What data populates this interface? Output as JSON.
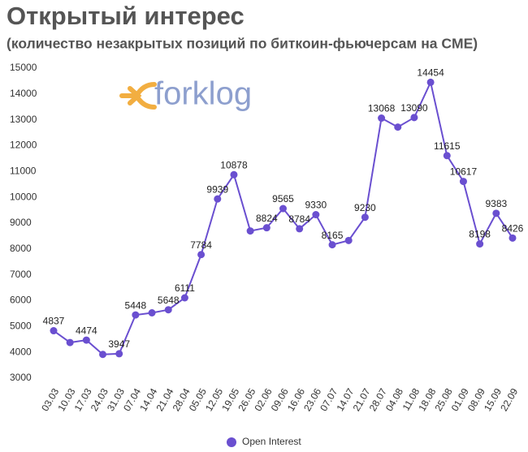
{
  "chart_data": {
    "type": "line",
    "title": "Открытый интерес",
    "subtitle": "(количество незакрытых позиций по биткоин-фьючерсам на CME)",
    "watermark": "forklog",
    "categories": [
      "03.03",
      "10.03",
      "17.03",
      "24.03",
      "31.03",
      "07.04",
      "14.04",
      "21.04",
      "28.04",
      "05.05",
      "12.05",
      "19.05",
      "26.05",
      "02.06",
      "09.06",
      "16.06",
      "23.06",
      "07.07",
      "14.07",
      "21.07",
      "28.07",
      "04.08",
      "11.08",
      "18.08",
      "25.08",
      "01.09",
      "08.09",
      "15.09",
      "22.09"
    ],
    "series": [
      {
        "name": "Open Interest",
        "color": "#6a4fd0",
        "values": [
          4837,
          4380,
          4474,
          3920,
          3947,
          5448,
          5530,
          5648,
          6111,
          7784,
          9939,
          10878,
          8700,
          8824,
          9565,
          8784,
          9330,
          8165,
          8330,
          9230,
          13068,
          12720,
          13090,
          14454,
          11615,
          10617,
          8198,
          9383,
          8426
        ],
        "value_labels": [
          "4837",
          null,
          "4474",
          null,
          "3947",
          "5448",
          null,
          "5648",
          "6111",
          "7784",
          "9939",
          "10878",
          null,
          "8824",
          "9565",
          "8784",
          "9330",
          "8165",
          null,
          "9230",
          "13068",
          null,
          "13090",
          "14454",
          "11615",
          "10617",
          "8198",
          "9383",
          "8426"
        ]
      }
    ],
    "ylim": [
      2800,
      15300
    ],
    "yticks": [
      3000,
      4000,
      5000,
      6000,
      7000,
      8000,
      9000,
      10000,
      11000,
      12000,
      13000,
      14000,
      15000
    ],
    "grid": false,
    "legend": "bottom"
  }
}
